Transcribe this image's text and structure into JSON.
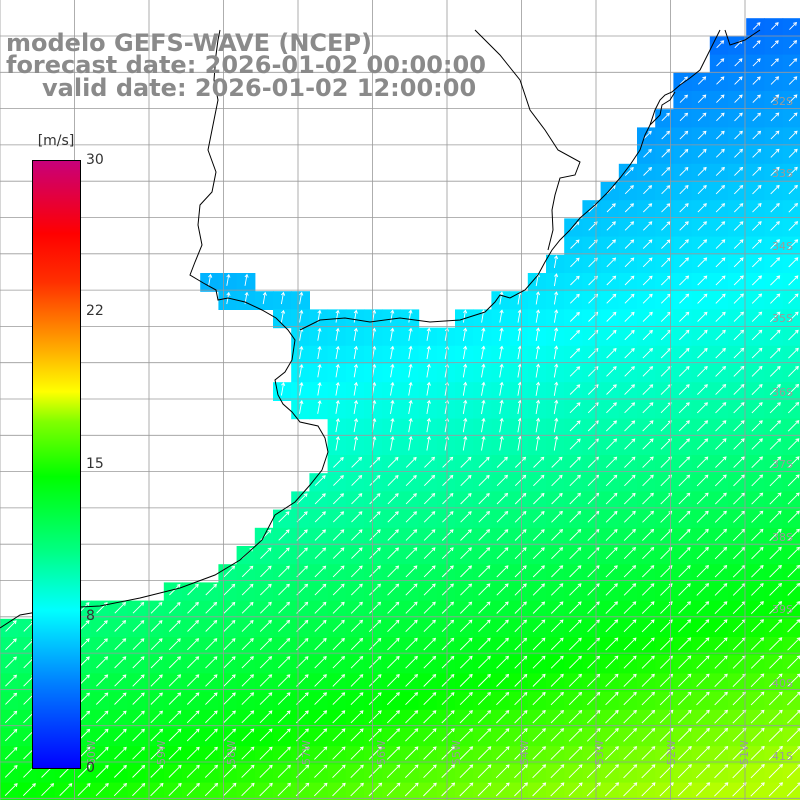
{
  "title": {
    "line1": "modelo GEFS-WAVE (NCEP)",
    "line2": "forecast date: 2026-01-02 00:00:00",
    "line3": "valid date: 2026-01-02 12:00:00"
  },
  "colorbar": {
    "unit": "[m/s]",
    "ticks": [
      "30",
      "22",
      "15",
      "8",
      "0"
    ],
    "tick_values": [
      30,
      22,
      15,
      8,
      0
    ],
    "colors": [
      "#0000ff",
      "#0080ff",
      "#00ffff",
      "#00ff80",
      "#00ff00",
      "#80ff00",
      "#ffff00",
      "#ffa000",
      "#ff3000",
      "#ff0000",
      "#c8007a"
    ]
  },
  "lat_labels": [
    "32S",
    "33S",
    "34S",
    "35S",
    "36S",
    "37S",
    "38S",
    "39S",
    "40S",
    "41S"
  ],
  "lon_labels": [
    "60W",
    "59W",
    "58W",
    "57W",
    "56W",
    "55W",
    "54W",
    "53W",
    "52W",
    "51W"
  ],
  "map": {
    "land_color": "#ffffff",
    "grid_color": "#9a9a9a",
    "arrow_color": "#ffffff",
    "coastline_color": "#000000",
    "wind_direction": "from south-west (arrows point north-east)"
  }
}
